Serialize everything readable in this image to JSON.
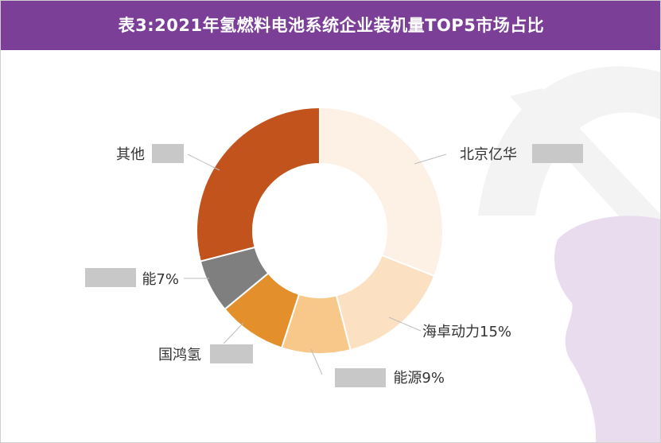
{
  "title": "表3:2021年氢燃料电池系统企业装机量TOP5市场占比",
  "colors": {
    "title_bg": "#7b3f98",
    "watermark": "#e9dcef"
  },
  "chart_data": {
    "type": "pie",
    "donut": true,
    "title": "表3:2021年氢燃料电池系统企业装机量TOP5市场占比",
    "slices": [
      {
        "label": "北京亿华",
        "value": 31,
        "color": "#fdf1e6"
      },
      {
        "label": "海卓动力15%",
        "value": 15,
        "color": "#fbe0c1"
      },
      {
        "label": "能源9%",
        "value": 9,
        "color": "#f7c88a"
      },
      {
        "label": "国鸿氢",
        "value": 9,
        "color": "#e3902c"
      },
      {
        "label": "能7%",
        "value": 7,
        "color": "#7f7f7f"
      },
      {
        "label": "其他",
        "value": 29,
        "color": "#c3531c"
      }
    ]
  }
}
